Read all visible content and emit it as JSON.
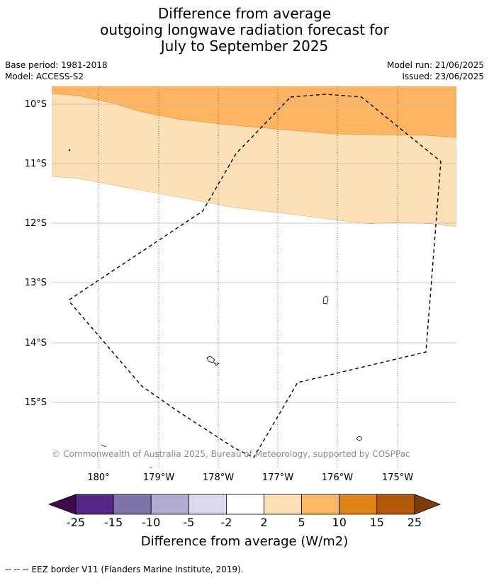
{
  "title": {
    "line1": "Difference from average",
    "line2": "outgoing longwave radiation forecast for",
    "line3": "July to September 2025"
  },
  "meta_left": {
    "base_period": "Base period: 1981-2018",
    "model": "Model: ACCESS-S2"
  },
  "meta_right": {
    "model_run": "Model run: 21/06/2025",
    "issued": "Issued: 23/06/2025"
  },
  "map": {
    "lat_labels": [
      "10°S",
      "11°S",
      "12°S",
      "13°S",
      "14°S",
      "15°S"
    ],
    "lon_labels": [
      "180°",
      "179°W",
      "178°W",
      "177°W",
      "176°W",
      "175°W"
    ],
    "copyright": "© Commonwealth of Australia 2025, Bureau of Meteorology, supported by COSPPac",
    "colors": {
      "band_5_10": "#fdb562",
      "band_2_5": "#fee0b6"
    }
  },
  "colorbar": {
    "ticks": [
      "-25",
      "-15",
      "-10",
      "-5",
      "-2",
      "2",
      "5",
      "10",
      "15",
      "25"
    ],
    "colors": [
      "#3f0a4d",
      "#542788",
      "#8073ac",
      "#b2abd2",
      "#d8daeb",
      "#ffffff",
      "#fee0b6",
      "#fdb863",
      "#e08214",
      "#b35806",
      "#7f3b08"
    ],
    "label": "Difference from average (W/m2)"
  },
  "footer": {
    "legend_symbol": "--  --  --",
    "eez_text": "EEZ border V11 (Flanders Marine Institute, 2019)."
  }
}
